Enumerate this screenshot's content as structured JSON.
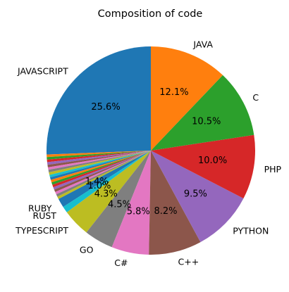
{
  "chart_data": {
    "type": "pie",
    "title": "Composition of code",
    "start_angle_deg": 90,
    "direction": "counterclockwise",
    "slices": [
      {
        "label": "JAVASCRIPT",
        "value": 25.6,
        "pct_label": "25.6%",
        "color": "#1f77b4"
      },
      {
        "label": "RUBY",
        "value": 1.4,
        "pct_label": "1.4%",
        "color": "#1f77b4"
      },
      {
        "label": "RUST",
        "value": 1.0,
        "pct_label": "1.0%",
        "color": "#17becf"
      },
      {
        "label": "TYPESCRIPT",
        "value": 4.3,
        "pct_label": "4.3%",
        "color": "#bcbd22"
      },
      {
        "label": "GO",
        "value": 4.5,
        "pct_label": "4.5%",
        "color": "#7f7f7f"
      },
      {
        "label": "C#",
        "value": 5.8,
        "pct_label": "5.8%",
        "color": "#e377c2"
      },
      {
        "label": "C++",
        "value": 8.2,
        "pct_label": "8.2%",
        "color": "#8c564b"
      },
      {
        "label": "PYTHON",
        "value": 9.5,
        "pct_label": "9.5%",
        "color": "#9467bd"
      },
      {
        "label": "PHP",
        "value": 10.0,
        "pct_label": "10.0%",
        "color": "#d62728"
      },
      {
        "label": "C",
        "value": 10.5,
        "pct_label": "10.5%",
        "color": "#2ca02c"
      },
      {
        "label": "JAVA",
        "value": 12.1,
        "pct_label": "12.1%",
        "color": "#ff7f0e"
      }
    ],
    "minor_slices": {
      "total_value": 7.1,
      "colors": [
        "#ff7f0e",
        "#2ca02c",
        "#d62728",
        "#9467bd",
        "#8c564b",
        "#e377c2",
        "#7f7f7f",
        "#bcbd22",
        "#17becf",
        "#1f77b4",
        "#ff7f0e",
        "#2ca02c",
        "#d62728",
        "#9467bd",
        "#8c564b",
        "#e377c2",
        "#7f7f7f",
        "#bcbd22"
      ]
    }
  }
}
